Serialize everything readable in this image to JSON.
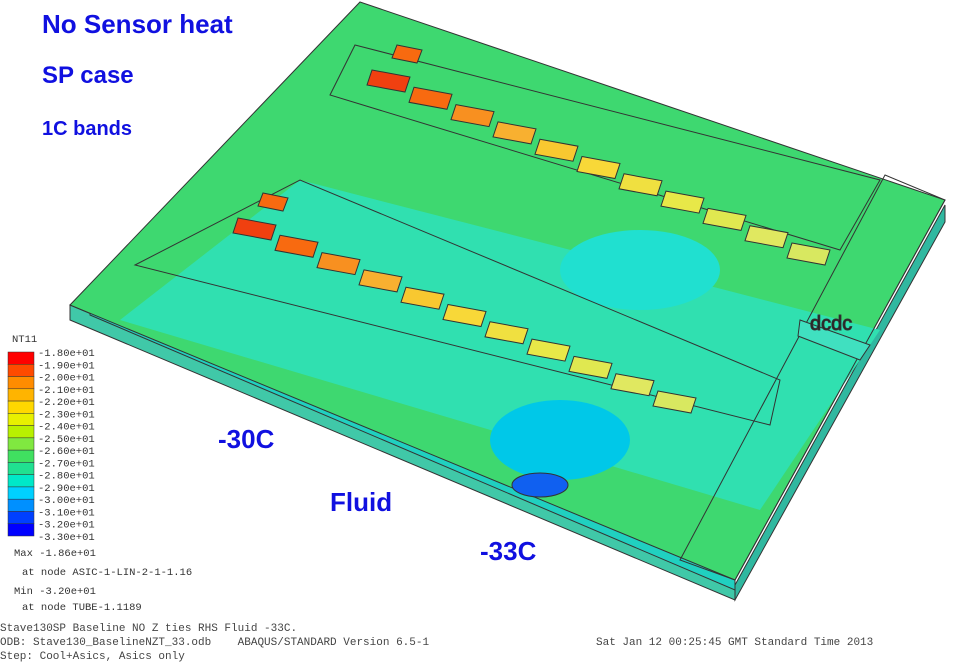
{
  "annotations": {
    "title": "No Sensor heat",
    "case": "SP case",
    "bands": "1C bands",
    "temp_left": "-30C",
    "fluid": "Fluid",
    "temp_right": "-33C",
    "dcdc": "dcdc"
  },
  "legend": {
    "title": "NT11",
    "labels": [
      "-1.80e+01",
      "-1.90e+01",
      "-2.00e+01",
      "-2.10e+01",
      "-2.20e+01",
      "-2.30e+01",
      "-2.40e+01",
      "-2.50e+01",
      "-2.60e+01",
      "-2.70e+01",
      "-2.80e+01",
      "-2.90e+01",
      "-3.00e+01",
      "-3.10e+01",
      "-3.20e+01",
      "-3.30e+01"
    ],
    "colors": [
      "#ff0000",
      "#ff4a00",
      "#ff8c00",
      "#ffb400",
      "#ffd800",
      "#e8f000",
      "#b8f000",
      "#80e840",
      "#40e060",
      "#20e090",
      "#00e8c8",
      "#00d0ff",
      "#0090ff",
      "#0040ff",
      "#0000ff"
    ]
  },
  "stats": {
    "max": "Max -1.86e+01",
    "max_node": "at node ASIC-1-LIN-2-1-1.16",
    "min": "Min -3.20e+01",
    "min_node": "at node TUBE-1.1189"
  },
  "footer": {
    "line1": "Stave130SP Baseline NO Z ties RHS Fluid -33C.",
    "line2": "ODB: Stave130_BaselineNZT_33.odb    ABAQUS/STANDARD Version 6.5-1",
    "date": "Sat Jan 12 00:25:45 GMT Standard Time 2013",
    "line3": "Step: Cool+Asics, Asics only"
  }
}
